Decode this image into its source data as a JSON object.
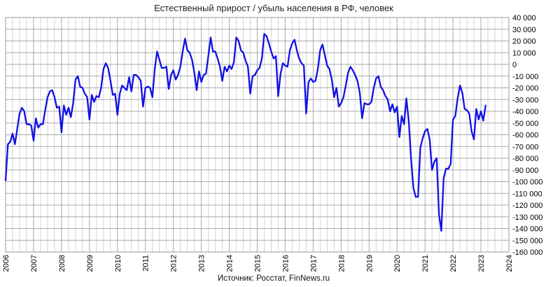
{
  "chart_data": {
    "type": "line",
    "title": "Естественный прирост / убыль населения в РФ, человек",
    "source": "Источник: Росстат, FinNews.ru",
    "xlim": [
      2006,
      2024
    ],
    "ylim": [
      -160000,
      40000
    ],
    "x_ticks": [
      "2006",
      "2007",
      "2008",
      "2009",
      "2010",
      "2011",
      "2012",
      "2013",
      "2014",
      "2015",
      "2016",
      "2017",
      "2018",
      "2019",
      "2020",
      "2021",
      "2022",
      "2023",
      "2024"
    ],
    "y_ticks": [
      {
        "value": 40000,
        "label": "40 000"
      },
      {
        "value": 30000,
        "label": "30 000"
      },
      {
        "value": 20000,
        "label": "20 000"
      },
      {
        "value": 10000,
        "label": "10 000"
      },
      {
        "value": 0,
        "label": "0"
      },
      {
        "value": -10000,
        "label": "-10 000"
      },
      {
        "value": -20000,
        "label": "-20 000"
      },
      {
        "value": -30000,
        "label": "-30 000"
      },
      {
        "value": -40000,
        "label": "-40 000"
      },
      {
        "value": -50000,
        "label": "-50 000"
      },
      {
        "value": -60000,
        "label": "-60 000"
      },
      {
        "value": -70000,
        "label": "-70 000"
      },
      {
        "value": -80000,
        "label": "-80 000"
      },
      {
        "value": -90000,
        "label": "-90 000"
      },
      {
        "value": -100000,
        "label": "-100 000"
      },
      {
        "value": -110000,
        "label": "-110 000"
      },
      {
        "value": -120000,
        "label": "-120 000"
      },
      {
        "value": -130000,
        "label": "-130 000"
      },
      {
        "value": -140000,
        "label": "-140 000"
      },
      {
        "value": -150000,
        "label": "-150 000"
      },
      {
        "value": -160000,
        "label": "-160 000"
      }
    ],
    "grid": true,
    "minor_grid_per_year": 4,
    "legend": "none",
    "colors": {
      "series": "#1010e6",
      "grid_major": "#a9a9a9",
      "grid_minor": "#d4d4d4"
    },
    "series": [
      {
        "start": "2006-01",
        "frequency": "monthly",
        "values": [
          -99000,
          -68000,
          -66000,
          -59000,
          -68000,
          -55000,
          -42000,
          -37000,
          -40000,
          -51000,
          -51000,
          -52000,
          -65000,
          -46000,
          -54000,
          -51000,
          -51000,
          -39000,
          -28000,
          -23000,
          -22000,
          -28000,
          -37000,
          -36000,
          -58000,
          -35000,
          -43000,
          -37000,
          -45000,
          -33000,
          -13000,
          -10000,
          -19000,
          -20000,
          -25000,
          -28000,
          -47000,
          -26000,
          -32000,
          -27000,
          -28000,
          -20000,
          -4000,
          1000,
          -3000,
          -14000,
          -26000,
          -25000,
          -43000,
          -25000,
          -18000,
          -20000,
          -22000,
          -11000,
          -23000,
          -9000,
          -9000,
          -11000,
          -14000,
          -36000,
          -20000,
          -19000,
          -20000,
          -28000,
          -4000,
          11000,
          4000,
          -3000,
          -3000,
          -2000,
          -21000,
          -9000,
          -5000,
          -13000,
          -9000,
          -2000,
          11000,
          22000,
          12000,
          10000,
          4000,
          -7000,
          -22000,
          -6000,
          -15000,
          -9000,
          -8000,
          7000,
          23000,
          11000,
          11000,
          5000,
          -2000,
          -14000,
          -2000,
          -6000,
          -1000,
          -4000,
          2000,
          23000,
          20000,
          12000,
          10000,
          3000,
          -2000,
          -25000,
          -10000,
          -9000,
          -5000,
          -3000,
          5000,
          26000,
          24000,
          18000,
          11000,
          5000,
          7000,
          -27000,
          -8000,
          1000,
          -1000,
          -2000,
          12000,
          18000,
          21000,
          12000,
          5000,
          1000,
          -1000,
          -42000,
          -15000,
          -12000,
          -15000,
          -14000,
          -4000,
          12000,
          17000,
          8000,
          -1000,
          -4000,
          -13000,
          -28000,
          -20000,
          -36000,
          -33000,
          -28000,
          -18000,
          -7000,
          -2000,
          -5000,
          -9000,
          -14000,
          -24000,
          -46000,
          -33000,
          -34000,
          -34000,
          -32000,
          -20000,
          -12000,
          -10000,
          -19000,
          -22000,
          -27000,
          -30000,
          -40000,
          -34000,
          -41000,
          -36000,
          -62000,
          -44000,
          -51000,
          -29000,
          -48000,
          -80000,
          -105000,
          -113000,
          -113000,
          -71000,
          -63000,
          -57000,
          -55000,
          -64000,
          -90000,
          -83000,
          -80000,
          -128000,
          -142000,
          -97000,
          -89000,
          -89000,
          -85000,
          -47000,
          -44000,
          -29000,
          -18000,
          -24000,
          -38000,
          -39000,
          -42000,
          -57000,
          -64000,
          -38000,
          -47000,
          -40000,
          -48000,
          -35000
        ]
      }
    ]
  }
}
